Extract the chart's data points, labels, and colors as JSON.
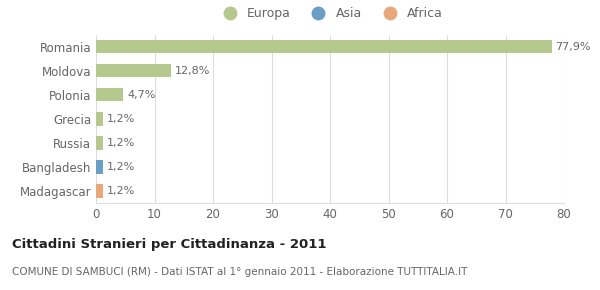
{
  "categories": [
    "Romania",
    "Moldova",
    "Polonia",
    "Grecia",
    "Russia",
    "Bangladesh",
    "Madagascar"
  ],
  "values": [
    77.9,
    12.8,
    4.7,
    1.2,
    1.2,
    1.2,
    1.2
  ],
  "labels": [
    "77,9%",
    "12,8%",
    "4,7%",
    "1,2%",
    "1,2%",
    "1,2%",
    "1,2%"
  ],
  "colors": [
    "#b5c98e",
    "#b5c98e",
    "#b5c98e",
    "#b5c98e",
    "#b5c98e",
    "#6a9ec5",
    "#e8a87c"
  ],
  "legend_items": [
    {
      "label": "Europa",
      "color": "#b5c98e"
    },
    {
      "label": "Asia",
      "color": "#6a9ec5"
    },
    {
      "label": "Africa",
      "color": "#e8a87c"
    }
  ],
  "xlim": [
    0,
    80
  ],
  "xticks": [
    0,
    10,
    20,
    30,
    40,
    50,
    60,
    70,
    80
  ],
  "title": "Cittadini Stranieri per Cittadinanza - 2011",
  "subtitle": "COMUNE DI SAMBUCI (RM) - Dati ISTAT al 1° gennaio 2011 - Elaborazione TUTTITALIA.IT",
  "background_color": "#ffffff",
  "bar_height": 0.55,
  "grid_color": "#dddddd",
  "text_color": "#666666",
  "title_color": "#222222",
  "subtitle_color": "#666666"
}
